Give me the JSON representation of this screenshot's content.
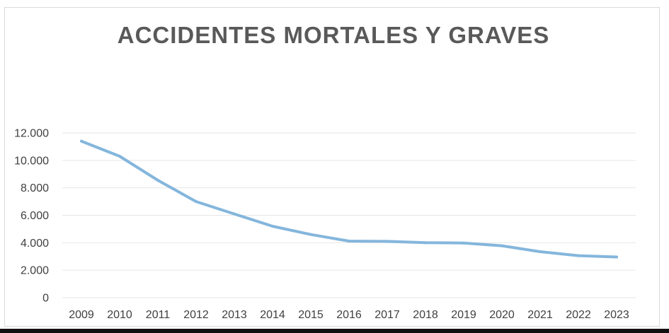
{
  "chart_data": {
    "type": "line",
    "title": "ACCIDENTES MORTALES Y GRAVES",
    "x": [
      "2009",
      "2010",
      "2011",
      "2012",
      "2013",
      "2014",
      "2015",
      "2016",
      "2017",
      "2018",
      "2019",
      "2020",
      "2021",
      "2022",
      "2023"
    ],
    "series": [
      {
        "values": [
          11400,
          10300,
          8550,
          7000,
          6100,
          5200,
          4600,
          4120,
          4100,
          4000,
          3980,
          3780,
          3350,
          3060,
          2960
        ]
      }
    ],
    "ylim": [
      0,
      12000
    ],
    "y_ticks": [
      "0",
      "2.000",
      "4.000",
      "6.000",
      "8.000",
      "10.000",
      "12.000"
    ],
    "y_tick_values": [
      0,
      2000,
      4000,
      6000,
      8000,
      10000,
      12000
    ],
    "grid": true,
    "legend": "none",
    "colors": {
      "series": "#84b6dc",
      "grid": "#e6e6e6",
      "title": "#595959",
      "labels": "#404040"
    }
  }
}
